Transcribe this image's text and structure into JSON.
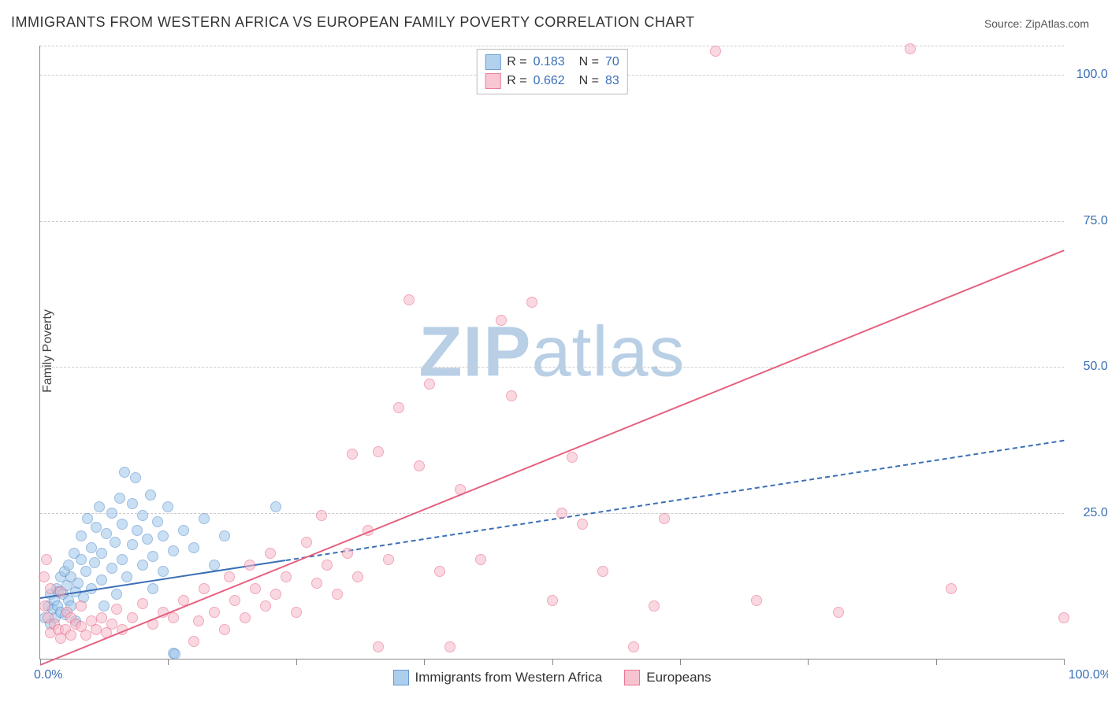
{
  "title": "IMMIGRANTS FROM WESTERN AFRICA VS EUROPEAN FAMILY POVERTY CORRELATION CHART",
  "source_prefix": "Source: ",
  "source_name": "ZipAtlas.com",
  "ylabel": "Family Poverty",
  "watermark_bold": "ZIP",
  "watermark_rest": "atlas",
  "watermark_color": "#b9cfe6",
  "chart": {
    "type": "scatter",
    "xlim": [
      0,
      100
    ],
    "ylim": [
      0,
      105
    ],
    "x_ticks_minor": [
      0,
      12.5,
      25,
      37.5,
      50,
      62.5,
      75,
      87.5,
      100
    ],
    "y_gridlines": [
      25,
      50,
      75,
      100,
      105
    ],
    "y_tick_labels": [
      {
        "v": 25,
        "label": "25.0%"
      },
      {
        "v": 50,
        "label": "50.0%"
      },
      {
        "v": 75,
        "label": "75.0%"
      },
      {
        "v": 100,
        "label": "100.0%"
      }
    ],
    "x_label_0": "0.0%",
    "x_label_100": "100.0%",
    "axis_label_color": "#3a6fb7",
    "grid_color": "#cccccc",
    "background_color": "#ffffff",
    "point_radius": 7,
    "point_border_width": 1.2,
    "series": [
      {
        "name": "Immigrants from Western Africa",
        "fill": "#9ec6ea",
        "fill_opacity": 0.55,
        "stroke": "#4f87c7",
        "r_value": "0.183",
        "n_value": "70",
        "trend": {
          "x1": 0,
          "y1": 10.5,
          "x2": 100,
          "y2": 37.5,
          "style": "solid_then_dash",
          "solid_until_x": 24,
          "color": "#3a6fb7",
          "width": 2
        },
        "points": [
          [
            0.5,
            7
          ],
          [
            0.8,
            9
          ],
          [
            1,
            6
          ],
          [
            1,
            11
          ],
          [
            1.2,
            8.5
          ],
          [
            1.4,
            10
          ],
          [
            1.5,
            7
          ],
          [
            1.6,
            12
          ],
          [
            1.7,
            9
          ],
          [
            1.8,
            11.5
          ],
          [
            2,
            14
          ],
          [
            2,
            8
          ],
          [
            2.2,
            11
          ],
          [
            2.4,
            15
          ],
          [
            2.5,
            7.5
          ],
          [
            2.6,
            12.5
          ],
          [
            2.8,
            16
          ],
          [
            2.8,
            10
          ],
          [
            3,
            9
          ],
          [
            3,
            14
          ],
          [
            3.3,
            18
          ],
          [
            3.5,
            11.5
          ],
          [
            3.5,
            6.5
          ],
          [
            3.7,
            13
          ],
          [
            4,
            17
          ],
          [
            4,
            21
          ],
          [
            4.2,
            10.5
          ],
          [
            4.5,
            15
          ],
          [
            4.6,
            24
          ],
          [
            5,
            12
          ],
          [
            5,
            19
          ],
          [
            5.3,
            16.5
          ],
          [
            5.5,
            22.5
          ],
          [
            5.8,
            26
          ],
          [
            6,
            13.5
          ],
          [
            6,
            18
          ],
          [
            6.2,
            9
          ],
          [
            6.5,
            21.5
          ],
          [
            7,
            15.5
          ],
          [
            7,
            25
          ],
          [
            7.3,
            20
          ],
          [
            7.5,
            11
          ],
          [
            7.8,
            27.5
          ],
          [
            8,
            17
          ],
          [
            8,
            23
          ],
          [
            8.2,
            32
          ],
          [
            8.5,
            14
          ],
          [
            9,
            19.5
          ],
          [
            9,
            26.5
          ],
          [
            9.3,
            31
          ],
          [
            9.5,
            22
          ],
          [
            10,
            16
          ],
          [
            10,
            24.5
          ],
          [
            10.5,
            20.5
          ],
          [
            10.8,
            28
          ],
          [
            11,
            17.5
          ],
          [
            11,
            12
          ],
          [
            11.5,
            23.5
          ],
          [
            12,
            15
          ],
          [
            12,
            21
          ],
          [
            12.5,
            26
          ],
          [
            13,
            1
          ],
          [
            13,
            18.5
          ],
          [
            13.2,
            0.8
          ],
          [
            14,
            22
          ],
          [
            15,
            19
          ],
          [
            16,
            24
          ],
          [
            17,
            16
          ],
          [
            18,
            21
          ],
          [
            23,
            26
          ]
        ]
      },
      {
        "name": "Europeans",
        "fill": "#f7b9c9",
        "fill_opacity": 0.55,
        "stroke": "#e6607f",
        "r_value": "0.662",
        "n_value": "83",
        "trend": {
          "x1": 0,
          "y1": -1,
          "x2": 100,
          "y2": 70,
          "style": "solid",
          "color": "#e6607f",
          "width": 2.5
        },
        "points": [
          [
            0.4,
            14
          ],
          [
            0.5,
            9
          ],
          [
            0.6,
            17
          ],
          [
            0.8,
            7
          ],
          [
            1,
            12
          ],
          [
            1,
            4.5
          ],
          [
            1.4,
            6
          ],
          [
            1.8,
            5
          ],
          [
            2,
            11.5
          ],
          [
            2,
            3.5
          ],
          [
            2.5,
            5
          ],
          [
            2.6,
            8
          ],
          [
            3,
            4
          ],
          [
            3,
            7
          ],
          [
            3.5,
            6
          ],
          [
            4,
            5.5
          ],
          [
            4,
            9
          ],
          [
            4.5,
            4
          ],
          [
            5,
            6.5
          ],
          [
            5.5,
            5
          ],
          [
            6,
            7
          ],
          [
            6.5,
            4.5
          ],
          [
            7,
            6
          ],
          [
            7.5,
            8.5
          ],
          [
            8,
            5
          ],
          [
            9,
            7
          ],
          [
            10,
            9.5
          ],
          [
            11,
            6
          ],
          [
            12,
            8
          ],
          [
            13,
            7
          ],
          [
            14,
            10
          ],
          [
            15,
            3
          ],
          [
            15.5,
            6.5
          ],
          [
            16,
            12
          ],
          [
            17,
            8
          ],
          [
            18,
            5
          ],
          [
            18.5,
            14
          ],
          [
            19,
            10
          ],
          [
            20,
            7
          ],
          [
            20.5,
            16
          ],
          [
            21,
            12
          ],
          [
            22,
            9
          ],
          [
            22.5,
            18
          ],
          [
            23,
            11
          ],
          [
            24,
            14
          ],
          [
            25,
            8
          ],
          [
            26,
            20
          ],
          [
            27,
            13
          ],
          [
            27.5,
            24.5
          ],
          [
            28,
            16
          ],
          [
            29,
            11
          ],
          [
            30,
            18
          ],
          [
            30.5,
            35
          ],
          [
            31,
            14
          ],
          [
            32,
            22
          ],
          [
            33,
            2
          ],
          [
            33,
            35.5
          ],
          [
            34,
            17
          ],
          [
            35,
            43
          ],
          [
            36,
            61.5
          ],
          [
            37,
            33
          ],
          [
            38,
            47
          ],
          [
            39,
            15
          ],
          [
            40,
            2
          ],
          [
            41,
            29
          ],
          [
            43,
            17
          ],
          [
            45,
            58
          ],
          [
            46,
            45
          ],
          [
            48,
            61
          ],
          [
            50,
            10
          ],
          [
            51,
            25
          ],
          [
            52,
            34.5
          ],
          [
            53,
            23
          ],
          [
            55,
            15
          ],
          [
            58,
            2
          ],
          [
            60,
            9
          ],
          [
            61,
            24
          ],
          [
            66,
            104
          ],
          [
            70,
            10
          ],
          [
            78,
            8
          ],
          [
            85,
            104.5
          ],
          [
            89,
            12
          ],
          [
            100,
            7
          ]
        ]
      }
    ],
    "legend_top": {
      "R_label": "R =",
      "N_label": "N =",
      "value_color": "#3a6fb7",
      "text_color": "#333333"
    },
    "legend_bottom_text_color": "#333333"
  }
}
